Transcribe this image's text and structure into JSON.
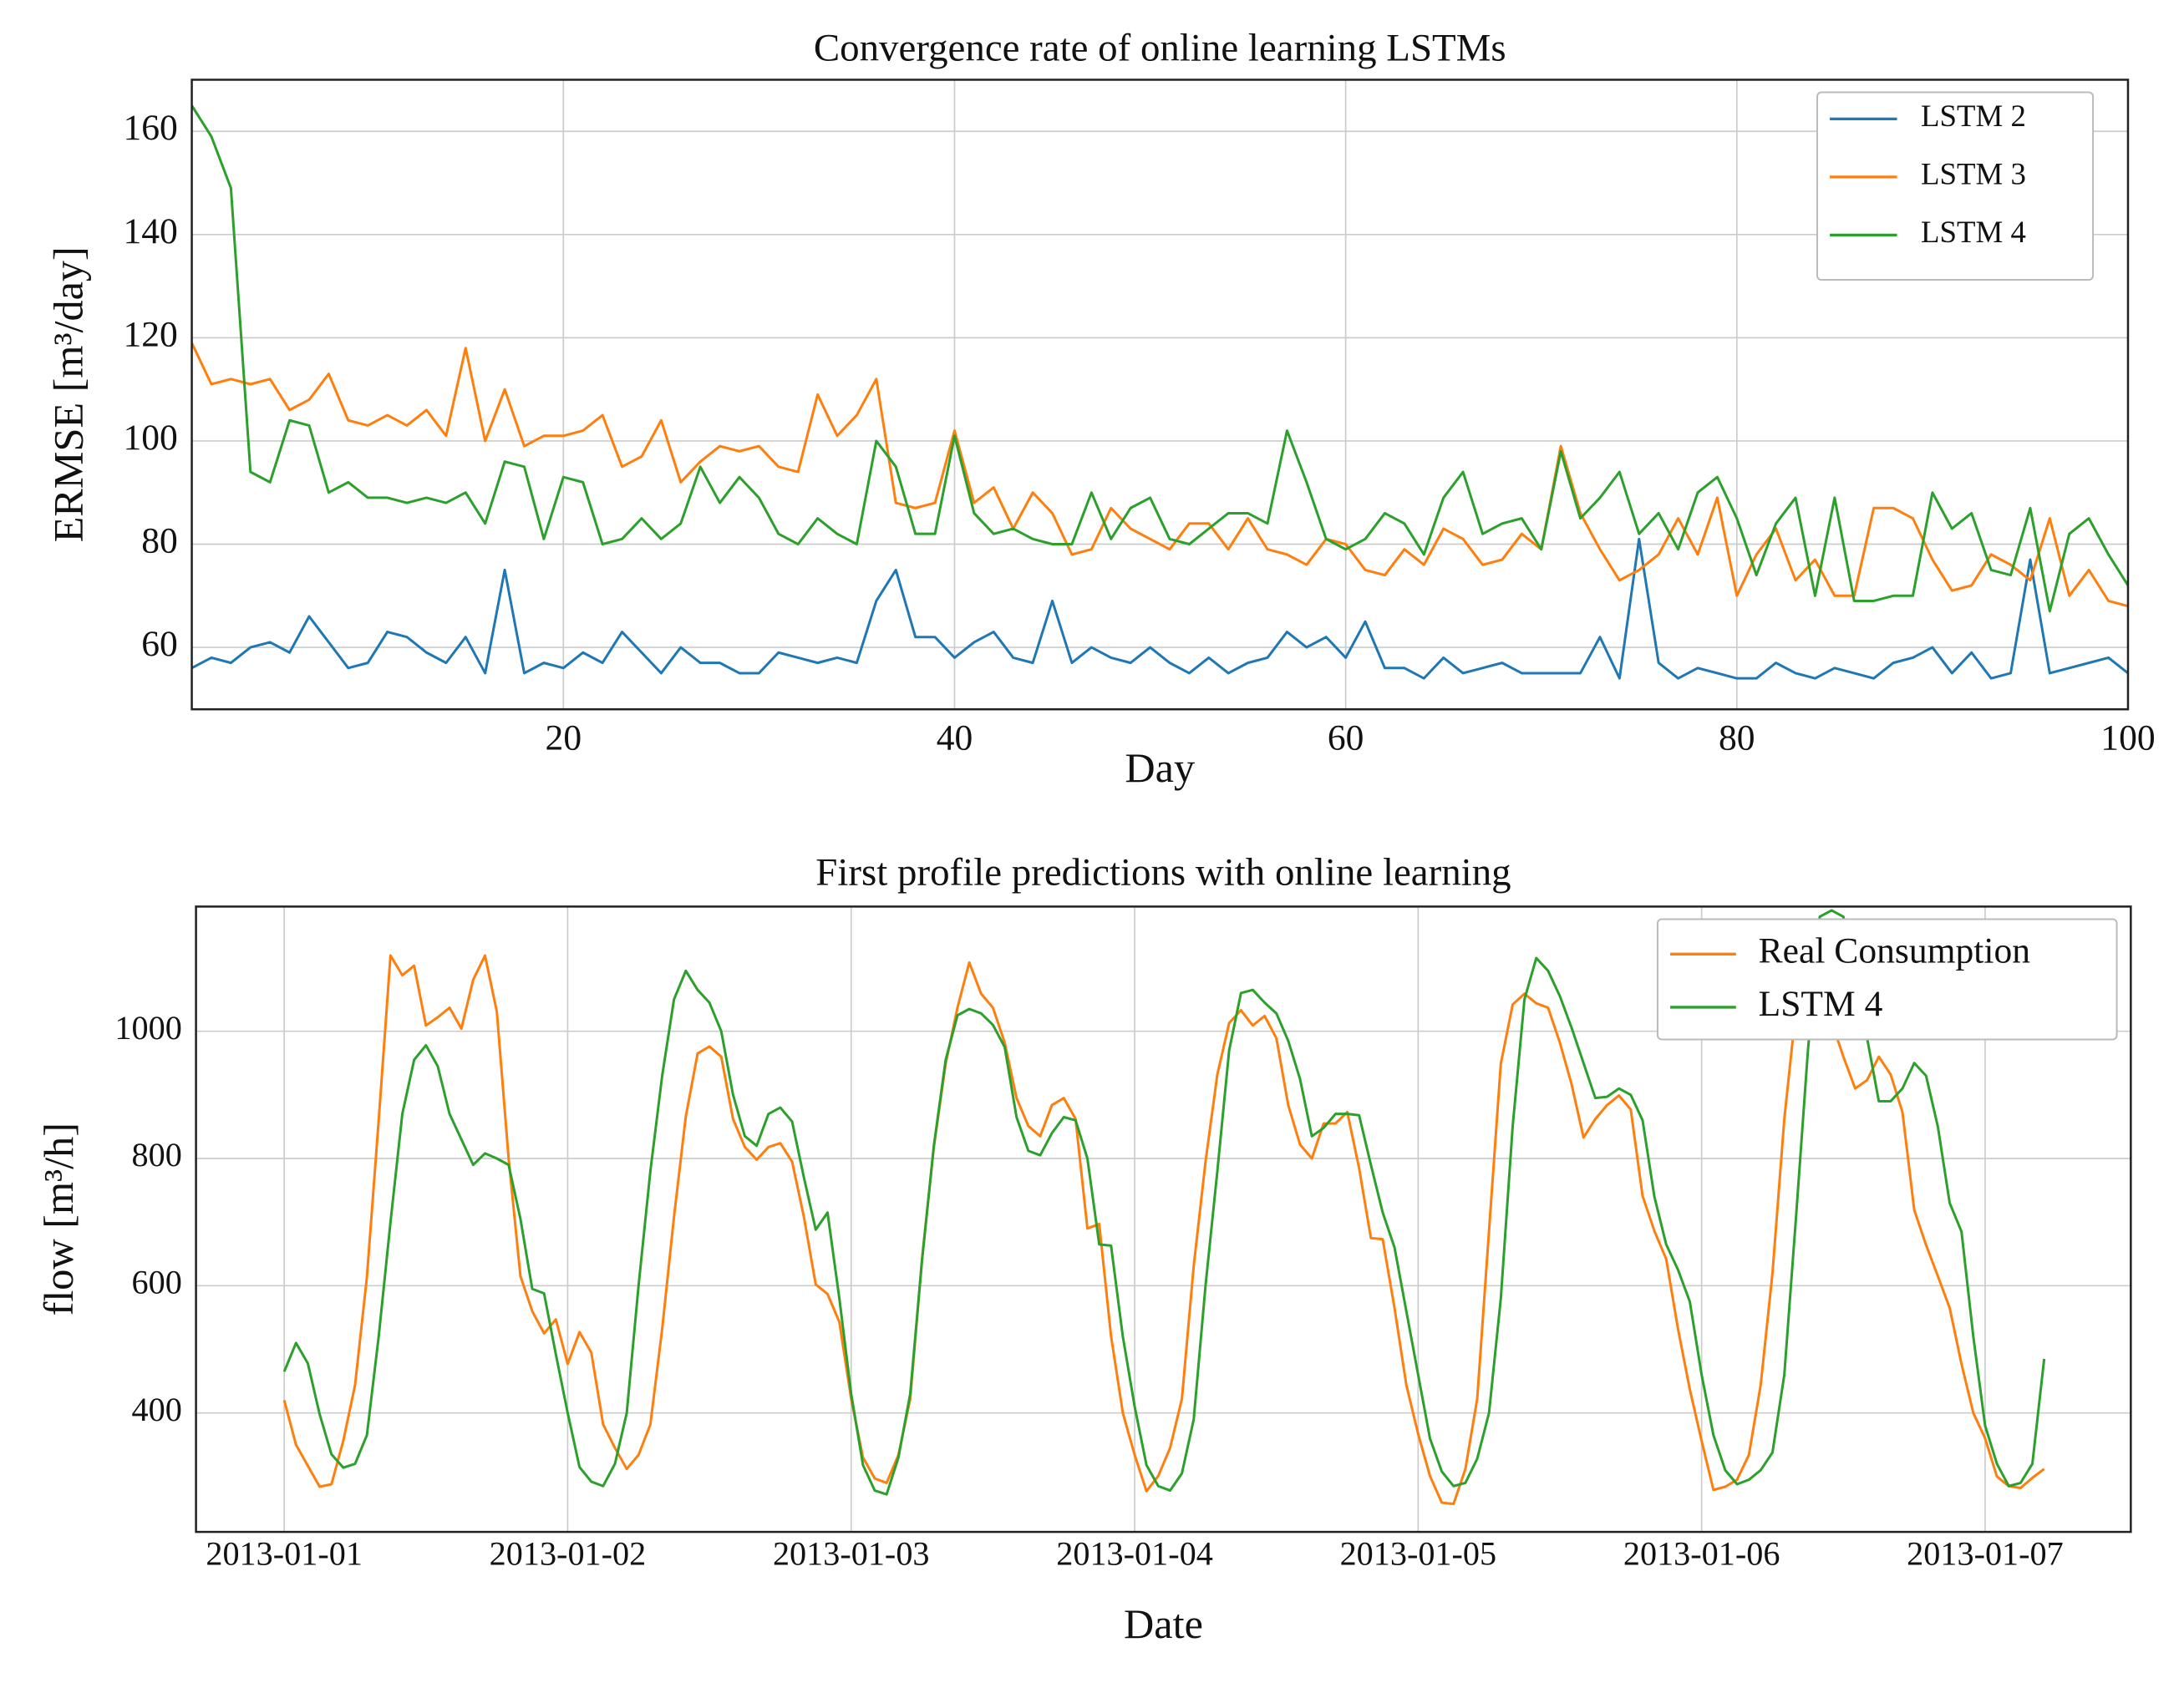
{
  "chart_data": [
    {
      "type": "line",
      "title": "Convergence rate of online learning LSTMs",
      "xlabel": "Day",
      "ylabel": "ERMSE [m³/day]",
      "x": [
        1,
        2,
        3,
        4,
        5,
        6,
        7,
        8,
        9,
        10,
        11,
        12,
        13,
        14,
        15,
        16,
        17,
        18,
        19,
        20,
        21,
        22,
        23,
        24,
        25,
        26,
        27,
        28,
        29,
        30,
        31,
        32,
        33,
        34,
        35,
        36,
        37,
        38,
        39,
        40,
        41,
        42,
        43,
        44,
        45,
        46,
        47,
        48,
        49,
        50,
        51,
        52,
        53,
        54,
        55,
        56,
        57,
        58,
        59,
        60,
        61,
        62,
        63,
        64,
        65,
        66,
        67,
        68,
        69,
        70,
        71,
        72,
        73,
        74,
        75,
        76,
        77,
        78,
        79,
        80,
        81,
        82,
        83,
        84,
        85,
        86,
        87,
        88,
        89,
        90,
        91,
        92,
        93,
        94,
        95,
        96,
        97,
        98,
        99,
        100
      ],
      "series": [
        {
          "name": "LSTM 2",
          "color": "#1f77b4",
          "values": [
            56,
            58,
            57,
            60,
            61,
            59,
            66,
            61,
            56,
            57,
            63,
            62,
            59,
            57,
            62,
            55,
            75,
            55,
            57,
            56,
            59,
            57,
            63,
            59,
            55,
            60,
            57,
            57,
            55,
            55,
            59,
            58,
            57,
            58,
            57,
            69,
            75,
            62,
            62,
            58,
            61,
            63,
            58,
            57,
            69,
            57,
            60,
            58,
            57,
            60,
            57,
            55,
            58,
            55,
            57,
            58,
            63,
            60,
            62,
            58,
            65,
            56,
            56,
            54,
            58,
            55,
            56,
            57,
            55,
            55,
            55,
            55,
            62,
            54,
            81,
            57,
            54,
            56,
            55,
            54,
            54,
            57,
            55,
            54,
            56,
            55,
            54,
            57,
            58,
            60,
            55,
            59,
            54,
            55,
            77,
            55,
            56,
            57,
            58,
            55
          ]
        },
        {
          "name": "LSTM 3",
          "color": "#ff7f0e",
          "values": [
            119,
            111,
            112,
            111,
            112,
            106,
            108,
            113,
            104,
            103,
            105,
            103,
            106,
            101,
            118,
            100,
            110,
            99,
            101,
            101,
            102,
            105,
            95,
            97,
            104,
            92,
            96,
            99,
            98,
            99,
            95,
            94,
            109,
            101,
            105,
            112,
            88,
            87,
            88,
            102,
            88,
            91,
            83,
            90,
            86,
            78,
            79,
            87,
            83,
            81,
            79,
            84,
            84,
            79,
            85,
            79,
            78,
            76,
            81,
            80,
            75,
            74,
            79,
            76,
            83,
            81,
            76,
            77,
            82,
            79,
            99,
            86,
            79,
            73,
            75,
            78,
            85,
            78,
            89,
            70,
            78,
            83,
            73,
            77,
            70,
            70,
            87,
            87,
            85,
            77,
            71,
            72,
            78,
            76,
            73,
            85,
            70,
            75,
            69,
            68
          ]
        },
        {
          "name": "LSTM 4",
          "color": "#2ca02c",
          "values": [
            165,
            159,
            149,
            94,
            92,
            104,
            103,
            90,
            92,
            89,
            89,
            88,
            89,
            88,
            90,
            84,
            96,
            95,
            81,
            93,
            92,
            80,
            81,
            85,
            81,
            84,
            95,
            88,
            93,
            89,
            82,
            80,
            85,
            82,
            80,
            100,
            95,
            82,
            82,
            101,
            86,
            82,
            83,
            81,
            80,
            80,
            90,
            81,
            87,
            89,
            81,
            80,
            83,
            86,
            86,
            84,
            102,
            92,
            81,
            79,
            81,
            86,
            84,
            78,
            89,
            94,
            82,
            84,
            85,
            79,
            98,
            85,
            89,
            94,
            82,
            86,
            79,
            90,
            93,
            85,
            74,
            84,
            89,
            70,
            89,
            69,
            69,
            70,
            70,
            90,
            83,
            86,
            75,
            74,
            87,
            67,
            82,
            85,
            78,
            72
          ]
        }
      ],
      "xlim": [
        1,
        100
      ],
      "xticks": [
        20,
        40,
        60,
        80,
        100
      ],
      "ylim": [
        48,
        170
      ],
      "yticks": [
        60,
        80,
        100,
        120,
        140,
        160
      ],
      "grid": true,
      "legend": "upper right"
    },
    {
      "type": "line",
      "title": "First profile predictions with online learning",
      "xlabel": "Date",
      "ylabel": "flow [m³/h]",
      "x": [
        "2013-01-01 00:00",
        "2013-01-01 01:00",
        "2013-01-01 02:00",
        "2013-01-01 03:00",
        "2013-01-01 04:00",
        "2013-01-01 05:00",
        "2013-01-01 06:00",
        "2013-01-01 07:00",
        "2013-01-01 08:00",
        "2013-01-01 09:00",
        "2013-01-01 10:00",
        "2013-01-01 11:00",
        "2013-01-01 12:00",
        "2013-01-01 13:00",
        "2013-01-01 14:00",
        "2013-01-01 15:00",
        "2013-01-01 16:00",
        "2013-01-01 17:00",
        "2013-01-01 18:00",
        "2013-01-01 19:00",
        "2013-01-01 20:00",
        "2013-01-01 21:00",
        "2013-01-01 22:00",
        "2013-01-01 23:00",
        "2013-01-02 00:00",
        "2013-01-02 01:00",
        "2013-01-02 02:00",
        "2013-01-02 03:00",
        "2013-01-02 04:00",
        "2013-01-02 05:00",
        "2013-01-02 06:00",
        "2013-01-02 07:00",
        "2013-01-02 08:00",
        "2013-01-02 09:00",
        "2013-01-02 10:00",
        "2013-01-02 11:00",
        "2013-01-02 12:00",
        "2013-01-02 13:00",
        "2013-01-02 14:00",
        "2013-01-02 15:00",
        "2013-01-02 16:00",
        "2013-01-02 17:00",
        "2013-01-02 18:00",
        "2013-01-02 19:00",
        "2013-01-02 20:00",
        "2013-01-02 21:00",
        "2013-01-02 22:00",
        "2013-01-02 23:00",
        "2013-01-03 00:00",
        "2013-01-03 01:00",
        "2013-01-03 02:00",
        "2013-01-03 03:00",
        "2013-01-03 04:00",
        "2013-01-03 05:00",
        "2013-01-03 06:00",
        "2013-01-03 07:00",
        "2013-01-03 08:00",
        "2013-01-03 09:00",
        "2013-01-03 10:00",
        "2013-01-03 11:00",
        "2013-01-03 12:00",
        "2013-01-03 13:00",
        "2013-01-03 14:00",
        "2013-01-03 15:00",
        "2013-01-03 16:00",
        "2013-01-03 17:00",
        "2013-01-03 18:00",
        "2013-01-03 19:00",
        "2013-01-03 20:00",
        "2013-01-03 21:00",
        "2013-01-03 22:00",
        "2013-01-03 23:00",
        "2013-01-04 00:00",
        "2013-01-04 01:00",
        "2013-01-04 02:00",
        "2013-01-04 03:00",
        "2013-01-04 04:00",
        "2013-01-04 05:00",
        "2013-01-04 06:00",
        "2013-01-04 07:00",
        "2013-01-04 08:00",
        "2013-01-04 09:00",
        "2013-01-04 10:00",
        "2013-01-04 11:00",
        "2013-01-04 12:00",
        "2013-01-04 13:00",
        "2013-01-04 14:00",
        "2013-01-04 15:00",
        "2013-01-04 16:00",
        "2013-01-04 17:00",
        "2013-01-04 18:00",
        "2013-01-04 19:00",
        "2013-01-04 20:00",
        "2013-01-04 21:00",
        "2013-01-04 22:00",
        "2013-01-04 23:00",
        "2013-01-05 00:00",
        "2013-01-05 01:00",
        "2013-01-05 02:00",
        "2013-01-05 03:00",
        "2013-01-05 04:00",
        "2013-01-05 05:00",
        "2013-01-05 06:00",
        "2013-01-05 07:00",
        "2013-01-05 08:00",
        "2013-01-05 09:00",
        "2013-01-05 10:00",
        "2013-01-05 11:00",
        "2013-01-05 12:00",
        "2013-01-05 13:00",
        "2013-01-05 14:00",
        "2013-01-05 15:00",
        "2013-01-05 16:00",
        "2013-01-05 17:00",
        "2013-01-05 18:00",
        "2013-01-05 19:00",
        "2013-01-05 20:00",
        "2013-01-05 21:00",
        "2013-01-05 22:00",
        "2013-01-05 23:00",
        "2013-01-06 00:00",
        "2013-01-06 01:00",
        "2013-01-06 02:00",
        "2013-01-06 03:00",
        "2013-01-06 04:00",
        "2013-01-06 05:00",
        "2013-01-06 06:00",
        "2013-01-06 07:00",
        "2013-01-06 08:00",
        "2013-01-06 09:00",
        "2013-01-06 10:00",
        "2013-01-06 11:00",
        "2013-01-06 12:00",
        "2013-01-06 13:00",
        "2013-01-06 14:00",
        "2013-01-06 15:00",
        "2013-01-06 16:00",
        "2013-01-06 17:00",
        "2013-01-06 18:00",
        "2013-01-06 19:00",
        "2013-01-06 20:00",
        "2013-01-06 21:00",
        "2013-01-06 22:00",
        "2013-01-06 23:00",
        "2013-01-07 00:00",
        "2013-01-07 01:00",
        "2013-01-07 02:00",
        "2013-01-07 03:00",
        "2013-01-07 04:00",
        "2013-01-07 05:00"
      ],
      "series": [
        {
          "name": "Real Consumption",
          "color": "#ff7f0e",
          "values": [
            420,
            350,
            317,
            284,
            288,
            356,
            444,
            613,
            860,
            1119,
            1088,
            1103,
            1009,
            1022,
            1037,
            1004,
            1081,
            1119,
            1031,
            800,
            615,
            560,
            525,
            547,
            477,
            527,
            495,
            382,
            345,
            312,
            334,
            382,
            532,
            708,
            866,
            965,
            976,
            960,
            862,
            818,
            798,
            818,
            824,
            795,
            708,
            602,
            587,
            543,
            422,
            330,
            297,
            290,
            334,
            422,
            642,
            818,
            949,
            1037,
            1108,
            1059,
            1037,
            982,
            895,
            851,
            835,
            884,
            895,
            862,
            690,
            697,
            521,
            400,
            334,
            277,
            301,
            345,
            422,
            631,
            795,
            932,
            1013,
            1033,
            1009,
            1024,
            989,
            884,
            822,
            800,
            855,
            855,
            873,
            785,
            675,
            673,
            565,
            444,
            367,
            301,
            259,
            257,
            312,
            422,
            686,
            949,
            1042,
            1059,
            1044,
            1037,
            982,
            916,
            833,
            862,
            884,
            899,
            877,
            741,
            686,
            642,
            532,
            437,
            356,
            279,
            284,
            295,
            334,
            444,
            620,
            862,
            1037,
            1081,
            1103,
            1015,
            960,
            910,
            923,
            960,
            932,
            873,
            719,
            664,
            615,
            565,
            477,
            400,
            360,
            300,
            285,
            282,
            298,
            312
          ]
        },
        {
          "name": "LSTM 4",
          "color": "#2ca02c",
          "values": [
            465,
            510,
            478,
            398,
            335,
            314,
            320,
            365,
            520,
            700,
            870,
            955,
            978,
            945,
            870,
            830,
            790,
            808,
            800,
            790,
            705,
            595,
            588,
            492,
            400,
            315,
            292,
            285,
            320,
            400,
            600,
            780,
            930,
            1050,
            1095,
            1065,
            1045,
            1000,
            900,
            835,
            820,
            870,
            880,
            858,
            770,
            688,
            715,
            580,
            430,
            318,
            278,
            272,
            330,
            430,
            640,
            820,
            955,
            1025,
            1035,
            1028,
            1010,
            975,
            865,
            812,
            805,
            840,
            865,
            860,
            800,
            665,
            663,
            520,
            410,
            318,
            285,
            278,
            305,
            390,
            600,
            780,
            970,
            1060,
            1065,
            1045,
            1028,
            985,
            925,
            835,
            848,
            870,
            870,
            868,
            790,
            715,
            660,
            560,
            460,
            360,
            308,
            285,
            290,
            328,
            400,
            580,
            850,
            1050,
            1115,
            1095,
            1055,
            1005,
            950,
            895,
            897,
            910,
            900,
            860,
            740,
            665,
            625,
            575,
            460,
            365,
            310,
            288,
            295,
            310,
            338,
            460,
            710,
            970,
            1180,
            1190,
            1180,
            1090,
            990,
            890,
            890,
            910,
            950,
            930,
            850,
            730,
            685,
            520,
            380,
            320,
            285,
            290,
            320,
            485
          ]
        }
      ],
      "xlim": [
        "2012-12-31 16:32",
        "2013-01-07 12:20"
      ],
      "xticks": [
        "2013-01-01",
        "2013-01-02",
        "2013-01-03",
        "2013-01-04",
        "2013-01-05",
        "2013-01-06",
        "2013-01-07"
      ],
      "ylim": [
        213,
        1196
      ],
      "yticks": [
        400,
        600,
        800,
        1000
      ],
      "grid": true,
      "legend": "upper right"
    }
  ]
}
